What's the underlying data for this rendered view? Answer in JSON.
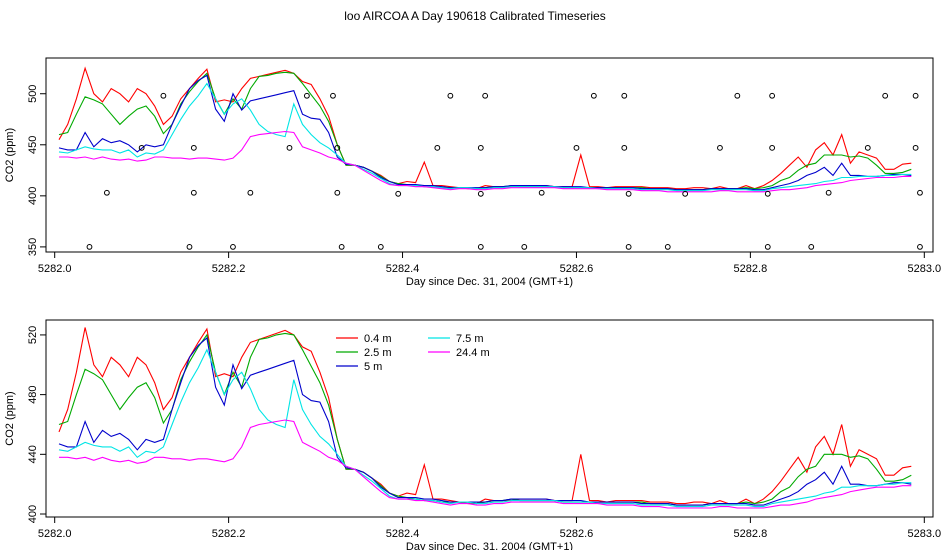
{
  "title": "loo AIRCOA A  Day 190618  Calibrated Timeseries",
  "colors": {
    "0.4 m": "#ff0000",
    "2.5 m": "#00aa00",
    "5 m": "#0000cc",
    "7.5 m": "#00e5e5",
    "24.4 m": "#ff00ff",
    "axis": "#000000",
    "points": "#000000"
  },
  "chart_data": [
    {
      "type": "line",
      "name": "top-panel",
      "xlabel": "Day since Dec. 31, 2004 (GMT+1)",
      "ylabel": "CO2 (ppm)",
      "xlim": [
        5281.99,
        5283.01
      ],
      "ylim": [
        345,
        535
      ],
      "x_ticks": [
        5282.0,
        5282.2,
        5282.4,
        5282.6,
        5282.8,
        5283.0
      ],
      "x_tick_labels": [
        "5282.0",
        "5282.2",
        "5282.4",
        "5282.6",
        "5282.8",
        "5283.0"
      ],
      "y_ticks": [
        350,
        400,
        450,
        500
      ],
      "y_tick_labels": [
        "350",
        "400",
        "450",
        "500"
      ],
      "legend": null,
      "show_series": true,
      "points": {
        "marker": "open-circle",
        "x": [
          5282.04,
          5282.155,
          5282.205,
          5282.06,
          5282.1,
          5282.125,
          5282.16,
          5282.16,
          5282.225,
          5282.27,
          5282.29,
          5282.32,
          5282.325,
          5282.325,
          5282.33,
          5282.375,
          5282.395,
          5282.44,
          5282.455,
          5282.49,
          5282.49,
          5282.49,
          5282.495,
          5282.54,
          5282.56,
          5282.6,
          5282.62,
          5282.655,
          5282.655,
          5282.66,
          5282.66,
          5282.705,
          5282.725,
          5282.765,
          5282.785,
          5282.82,
          5282.82,
          5282.825,
          5282.825,
          5282.87,
          5282.89,
          5282.935,
          5282.955,
          5282.99,
          5282.99,
          5282.995,
          5282.995
        ],
        "y": [
          350,
          350,
          350,
          403,
          447,
          498,
          403,
          447,
          403,
          447,
          498,
          498,
          447,
          403,
          350,
          350,
          402,
          447,
          498,
          350,
          402,
          447,
          498,
          350,
          403,
          447,
          498,
          447,
          498,
          402,
          350,
          350,
          402,
          447,
          498,
          350,
          402,
          447,
          498,
          350,
          403,
          447,
          498,
          498,
          447,
          403,
          350
        ]
      }
    },
    {
      "type": "line",
      "name": "bottom-panel",
      "xlabel": "Day since Dec. 31, 2004 (GMT+1)",
      "ylabel": "CO2 (ppm)",
      "xlim": [
        5281.99,
        5283.01
      ],
      "ylim": [
        398,
        530
      ],
      "x_ticks": [
        5282.0,
        5282.2,
        5282.4,
        5282.6,
        5282.8,
        5283.0
      ],
      "x_tick_labels": [
        "5282.0",
        "5282.2",
        "5282.4",
        "5282.6",
        "5282.8",
        "5283.0"
      ],
      "y_ticks": [
        400,
        440,
        480,
        520
      ],
      "y_tick_labels": [
        "400",
        "440",
        "480",
        "520"
      ],
      "legend": "top-left",
      "show_series": true
    }
  ],
  "series": [
    {
      "name": "0.4 m",
      "x": [
        5282.005,
        5282.015,
        5282.025,
        5282.035,
        5282.045,
        5282.055,
        5282.065,
        5282.075,
        5282.085,
        5282.095,
        5282.105,
        5282.115,
        5282.125,
        5282.135,
        5282.145,
        5282.155,
        5282.165,
        5282.175,
        5282.185,
        5282.195,
        5282.205,
        5282.215,
        5282.225,
        5282.235,
        5282.245,
        5282.255,
        5282.265,
        5282.275,
        5282.285,
        5282.295,
        5282.305,
        5282.315,
        5282.325,
        5282.335,
        5282.345,
        5282.355,
        5282.365,
        5282.375,
        5282.385,
        5282.395,
        5282.405,
        5282.415,
        5282.425,
        5282.435,
        5282.445,
        5282.455,
        5282.465,
        5282.475,
        5282.485,
        5282.495,
        5282.505,
        5282.515,
        5282.525,
        5282.535,
        5282.545,
        5282.555,
        5282.565,
        5282.575,
        5282.585,
        5282.595,
        5282.605,
        5282.615,
        5282.625,
        5282.635,
        5282.645,
        5282.655,
        5282.665,
        5282.675,
        5282.685,
        5282.695,
        5282.705,
        5282.715,
        5282.725,
        5282.735,
        5282.745,
        5282.755,
        5282.765,
        5282.775,
        5282.785,
        5282.795,
        5282.805,
        5282.815,
        5282.825,
        5282.835,
        5282.845,
        5282.855,
        5282.865,
        5282.875,
        5282.885,
        5282.895,
        5282.905,
        5282.915,
        5282.925,
        5282.935,
        5282.945,
        5282.955,
        5282.965,
        5282.975,
        5282.985
      ],
      "y": [
        455,
        470,
        495,
        525,
        500,
        492,
        505,
        500,
        492,
        505,
        500,
        488,
        470,
        478,
        495,
        505,
        515,
        524,
        492,
        494,
        492,
        505,
        515,
        517,
        519,
        521,
        523,
        520,
        512,
        509,
        495,
        478,
        450,
        430,
        430,
        428,
        424,
        420,
        414,
        412,
        414,
        413,
        433,
        410,
        410,
        409,
        408,
        407,
        407,
        410,
        409,
        409,
        409,
        410,
        410,
        410,
        410,
        409,
        409,
        409,
        440,
        409,
        409,
        408,
        409,
        409,
        409,
        409,
        408,
        408,
        408,
        407,
        407,
        408,
        408,
        407,
        409,
        407,
        407,
        410,
        407,
        410,
        415,
        422,
        430,
        438,
        428,
        445,
        452,
        440,
        460,
        432,
        443,
        440,
        437,
        426,
        426,
        431,
        432
      ]
    },
    {
      "name": "2.5 m",
      "x": [
        5282.005,
        5282.015,
        5282.025,
        5282.035,
        5282.045,
        5282.055,
        5282.065,
        5282.075,
        5282.085,
        5282.095,
        5282.105,
        5282.115,
        5282.125,
        5282.135,
        5282.145,
        5282.155,
        5282.165,
        5282.175,
        5282.185,
        5282.195,
        5282.205,
        5282.215,
        5282.225,
        5282.235,
        5282.245,
        5282.255,
        5282.265,
        5282.275,
        5282.285,
        5282.295,
        5282.305,
        5282.315,
        5282.325,
        5282.335,
        5282.345,
        5282.355,
        5282.365,
        5282.375,
        5282.385,
        5282.395,
        5282.405,
        5282.415,
        5282.425,
        5282.435,
        5282.445,
        5282.455,
        5282.465,
        5282.475,
        5282.485,
        5282.495,
        5282.505,
        5282.515,
        5282.525,
        5282.535,
        5282.545,
        5282.555,
        5282.565,
        5282.575,
        5282.585,
        5282.595,
        5282.605,
        5282.615,
        5282.625,
        5282.635,
        5282.645,
        5282.655,
        5282.665,
        5282.675,
        5282.685,
        5282.695,
        5282.705,
        5282.715,
        5282.725,
        5282.735,
        5282.745,
        5282.755,
        5282.765,
        5282.775,
        5282.785,
        5282.795,
        5282.805,
        5282.815,
        5282.825,
        5282.835,
        5282.845,
        5282.855,
        5282.865,
        5282.875,
        5282.885,
        5282.895,
        5282.905,
        5282.915,
        5282.925,
        5282.935,
        5282.945,
        5282.955,
        5282.965,
        5282.975,
        5282.985
      ],
      "y": [
        460,
        462,
        480,
        497,
        494,
        490,
        480,
        470,
        478,
        485,
        488,
        478,
        461,
        470,
        490,
        502,
        512,
        520,
        495,
        480,
        495,
        485,
        505,
        517,
        518,
        520,
        521,
        520,
        510,
        499,
        488,
        473,
        450,
        430,
        430,
        428,
        424,
        419,
        414,
        412,
        411,
        410,
        409,
        409,
        408,
        408,
        408,
        408,
        407,
        408,
        409,
        409,
        410,
        409,
        409,
        409,
        409,
        409,
        408,
        408,
        408,
        408,
        408,
        408,
        408,
        408,
        408,
        408,
        407,
        407,
        407,
        406,
        406,
        406,
        406,
        407,
        407,
        407,
        407,
        408,
        407,
        408,
        410,
        415,
        418,
        425,
        430,
        432,
        440,
        440,
        440,
        438,
        439,
        437,
        430,
        422,
        422,
        423,
        426
      ]
    },
    {
      "name": "5 m",
      "x": [
        5282.005,
        5282.015,
        5282.025,
        5282.035,
        5282.045,
        5282.055,
        5282.065,
        5282.075,
        5282.085,
        5282.095,
        5282.105,
        5282.115,
        5282.125,
        5282.135,
        5282.145,
        5282.155,
        5282.165,
        5282.175,
        5282.185,
        5282.195,
        5282.205,
        5282.215,
        5282.225,
        5282.235,
        5282.245,
        5282.255,
        5282.265,
        5282.275,
        5282.285,
        5282.295,
        5282.305,
        5282.315,
        5282.325,
        5282.335,
        5282.345,
        5282.355,
        5282.365,
        5282.375,
        5282.385,
        5282.395,
        5282.405,
        5282.415,
        5282.425,
        5282.435,
        5282.445,
        5282.455,
        5282.465,
        5282.475,
        5282.485,
        5282.495,
        5282.505,
        5282.515,
        5282.525,
        5282.535,
        5282.545,
        5282.555,
        5282.565,
        5282.575,
        5282.585,
        5282.595,
        5282.605,
        5282.615,
        5282.625,
        5282.635,
        5282.645,
        5282.655,
        5282.665,
        5282.675,
        5282.685,
        5282.695,
        5282.705,
        5282.715,
        5282.725,
        5282.735,
        5282.745,
        5282.755,
        5282.765,
        5282.775,
        5282.785,
        5282.795,
        5282.805,
        5282.815,
        5282.825,
        5282.835,
        5282.845,
        5282.855,
        5282.865,
        5282.875,
        5282.885,
        5282.895,
        5282.905,
        5282.915,
        5282.925,
        5282.935,
        5282.945,
        5282.955,
        5282.965,
        5282.975,
        5282.985
      ],
      "y": [
        447,
        445,
        445,
        462,
        448,
        456,
        452,
        454,
        450,
        443,
        450,
        448,
        450,
        470,
        488,
        505,
        513,
        518,
        485,
        473,
        500,
        484,
        493,
        495,
        497,
        499,
        501,
        503,
        480,
        476,
        475,
        462,
        438,
        431,
        430,
        428,
        424,
        418,
        414,
        411,
        411,
        411,
        410,
        410,
        409,
        408,
        408,
        408,
        408,
        408,
        409,
        409,
        410,
        410,
        410,
        410,
        410,
        409,
        409,
        409,
        409,
        408,
        408,
        408,
        408,
        408,
        408,
        407,
        407,
        407,
        407,
        406,
        406,
        406,
        406,
        407,
        407,
        407,
        407,
        407,
        406,
        406,
        408,
        410,
        412,
        415,
        420,
        423,
        428,
        420,
        432,
        420,
        420,
        419,
        419,
        420,
        421,
        421,
        420
      ]
    },
    {
      "name": "7.5 m",
      "x": [
        5282.005,
        5282.015,
        5282.025,
        5282.035,
        5282.045,
        5282.055,
        5282.065,
        5282.075,
        5282.085,
        5282.095,
        5282.105,
        5282.115,
        5282.125,
        5282.135,
        5282.145,
        5282.155,
        5282.165,
        5282.175,
        5282.185,
        5282.195,
        5282.205,
        5282.215,
        5282.225,
        5282.235,
        5282.245,
        5282.255,
        5282.265,
        5282.275,
        5282.285,
        5282.295,
        5282.305,
        5282.315,
        5282.325,
        5282.335,
        5282.345,
        5282.355,
        5282.365,
        5282.375,
        5282.385,
        5282.395,
        5282.405,
        5282.415,
        5282.425,
        5282.435,
        5282.445,
        5282.455,
        5282.465,
        5282.475,
        5282.485,
        5282.495,
        5282.505,
        5282.515,
        5282.525,
        5282.535,
        5282.545,
        5282.555,
        5282.565,
        5282.575,
        5282.585,
        5282.595,
        5282.605,
        5282.615,
        5282.625,
        5282.635,
        5282.645,
        5282.655,
        5282.665,
        5282.675,
        5282.685,
        5282.695,
        5282.705,
        5282.715,
        5282.725,
        5282.735,
        5282.745,
        5282.755,
        5282.765,
        5282.775,
        5282.785,
        5282.795,
        5282.805,
        5282.815,
        5282.825,
        5282.835,
        5282.845,
        5282.855,
        5282.865,
        5282.875,
        5282.885,
        5282.895,
        5282.905,
        5282.915,
        5282.925,
        5282.935,
        5282.945,
        5282.955,
        5282.965,
        5282.975,
        5282.985
      ],
      "y": [
        443,
        442,
        445,
        448,
        446,
        445,
        445,
        442,
        445,
        438,
        442,
        441,
        445,
        460,
        475,
        488,
        498,
        510,
        495,
        480,
        490,
        495,
        484,
        470,
        463,
        460,
        458,
        490,
        470,
        460,
        452,
        447,
        440,
        432,
        430,
        426,
        422,
        417,
        412,
        410,
        410,
        410,
        409,
        409,
        408,
        407,
        408,
        408,
        407,
        407,
        408,
        408,
        409,
        409,
        409,
        409,
        409,
        409,
        408,
        408,
        408,
        408,
        407,
        407,
        407,
        407,
        407,
        406,
        406,
        406,
        406,
        405,
        405,
        405,
        405,
        406,
        406,
        406,
        406,
        406,
        405,
        405,
        407,
        408,
        409,
        410,
        411,
        412,
        414,
        415,
        418,
        418,
        419,
        419,
        419,
        420,
        420,
        421,
        421
      ]
    },
    {
      "name": "24.4 m",
      "x": [
        5282.005,
        5282.015,
        5282.025,
        5282.035,
        5282.045,
        5282.055,
        5282.065,
        5282.075,
        5282.085,
        5282.095,
        5282.105,
        5282.115,
        5282.125,
        5282.135,
        5282.145,
        5282.155,
        5282.165,
        5282.175,
        5282.185,
        5282.195,
        5282.205,
        5282.215,
        5282.225,
        5282.235,
        5282.245,
        5282.255,
        5282.265,
        5282.275,
        5282.285,
        5282.295,
        5282.305,
        5282.315,
        5282.325,
        5282.335,
        5282.345,
        5282.355,
        5282.365,
        5282.375,
        5282.385,
        5282.395,
        5282.405,
        5282.415,
        5282.425,
        5282.435,
        5282.445,
        5282.455,
        5282.465,
        5282.475,
        5282.485,
        5282.495,
        5282.505,
        5282.515,
        5282.525,
        5282.535,
        5282.545,
        5282.555,
        5282.565,
        5282.575,
        5282.585,
        5282.595,
        5282.605,
        5282.615,
        5282.625,
        5282.635,
        5282.645,
        5282.655,
        5282.665,
        5282.675,
        5282.685,
        5282.695,
        5282.705,
        5282.715,
        5282.725,
        5282.735,
        5282.745,
        5282.755,
        5282.765,
        5282.775,
        5282.785,
        5282.795,
        5282.805,
        5282.815,
        5282.825,
        5282.835,
        5282.845,
        5282.855,
        5282.865,
        5282.875,
        5282.885,
        5282.895,
        5282.905,
        5282.915,
        5282.925,
        5282.935,
        5282.945,
        5282.955,
        5282.965,
        5282.975,
        5282.985
      ],
      "y": [
        438,
        438,
        437,
        438,
        436,
        438,
        436,
        435,
        436,
        434,
        435,
        438,
        438,
        437,
        437,
        436,
        437,
        437,
        436,
        435,
        437,
        445,
        458,
        460,
        461,
        462,
        463,
        462,
        448,
        445,
        442,
        438,
        436,
        432,
        430,
        425,
        420,
        415,
        411,
        410,
        410,
        409,
        409,
        408,
        407,
        406,
        407,
        407,
        406,
        406,
        407,
        407,
        408,
        408,
        408,
        408,
        408,
        408,
        407,
        407,
        407,
        407,
        407,
        406,
        406,
        406,
        406,
        405,
        405,
        405,
        404,
        404,
        404,
        404,
        404,
        404,
        405,
        405,
        404,
        404,
        404,
        404,
        405,
        406,
        406,
        407,
        408,
        410,
        411,
        412,
        413,
        415,
        416,
        417,
        418,
        418,
        418,
        419,
        419
      ]
    }
  ]
}
